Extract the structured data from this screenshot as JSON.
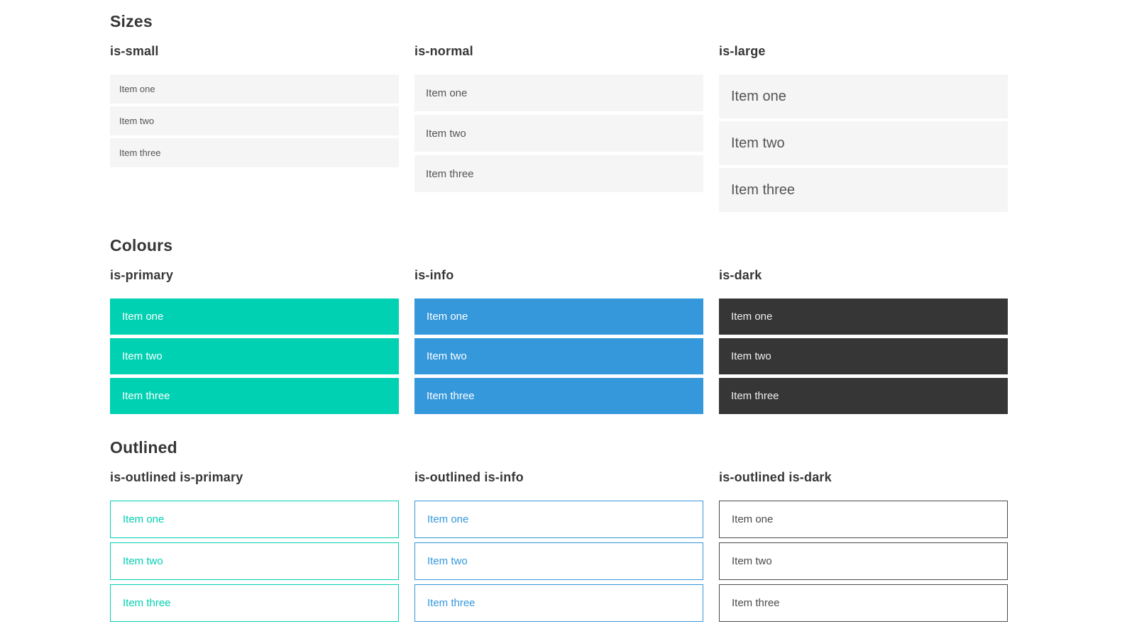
{
  "colors": {
    "primary": "#00d1b2",
    "info": "#3498db",
    "dark": "#363636",
    "light_item_bg": "#f5f5f5",
    "light_item_text": "#545454",
    "heading_text": "#363636",
    "white_text": "#ffffff",
    "dark_item_text": "#f0f0f0",
    "outlined_dark_text": "#4a4a4a",
    "outlined_dark_border": "#4a4a4a"
  },
  "sections": [
    {
      "title": "Sizes",
      "columns": [
        {
          "heading": "is-small",
          "items": [
            "Item one",
            "Item two",
            "Item three"
          ]
        },
        {
          "heading": "is-normal",
          "items": [
            "Item one",
            "Item two",
            "Item three"
          ]
        },
        {
          "heading": "is-large",
          "items": [
            "Item one",
            "Item two",
            "Item three"
          ]
        }
      ]
    },
    {
      "title": "Colours",
      "columns": [
        {
          "heading": "is-primary",
          "items": [
            "Item one",
            "Item two",
            "Item three"
          ]
        },
        {
          "heading": "is-info",
          "items": [
            "Item one",
            "Item two",
            "Item three"
          ]
        },
        {
          "heading": "is-dark",
          "items": [
            "Item one",
            "Item two",
            "Item three"
          ]
        }
      ]
    },
    {
      "title": "Outlined",
      "columns": [
        {
          "heading": "is-outlined is-primary",
          "items": [
            "Item one",
            "Item two",
            "Item three"
          ]
        },
        {
          "heading": "is-outlined is-info",
          "items": [
            "Item one",
            "Item two",
            "Item three"
          ]
        },
        {
          "heading": "is-outlined is-dark",
          "items": [
            "Item one",
            "Item two",
            "Item three"
          ]
        }
      ]
    }
  ]
}
